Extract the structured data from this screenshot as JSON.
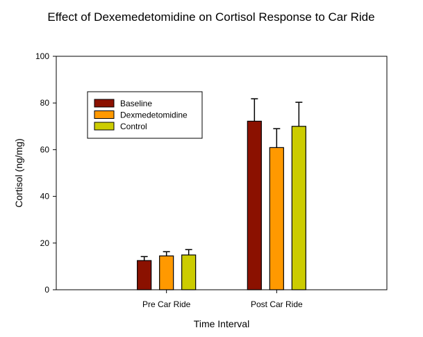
{
  "chart_data": {
    "type": "bar",
    "title": "Effect of Dexemedetomidine on Cortisol Response to Car Ride",
    "xlabel": "Time Interval",
    "ylabel": "Cortisol (ng/mg)",
    "ylim": [
      0,
      100
    ],
    "yticks": [
      "0",
      "20",
      "40",
      "60",
      "80",
      "100"
    ],
    "categories": [
      "Pre Car Ride",
      "Post Car Ride"
    ],
    "series": [
      {
        "name": "Baseline",
        "color": "#8b1100",
        "values": [
          12.5,
          72.2
        ],
        "error_upper": [
          14.2,
          81.8
        ]
      },
      {
        "name": "Dexmedetomidine",
        "color": "#ff9900",
        "values": [
          14.5,
          60.9
        ],
        "error_upper": [
          16.3,
          69.0
        ]
      },
      {
        "name": "Control",
        "color": "#cccc00",
        "values": [
          14.9,
          70.0
        ],
        "error_upper": [
          17.2,
          80.3
        ]
      }
    ],
    "grid": false,
    "legend": "top-left"
  }
}
